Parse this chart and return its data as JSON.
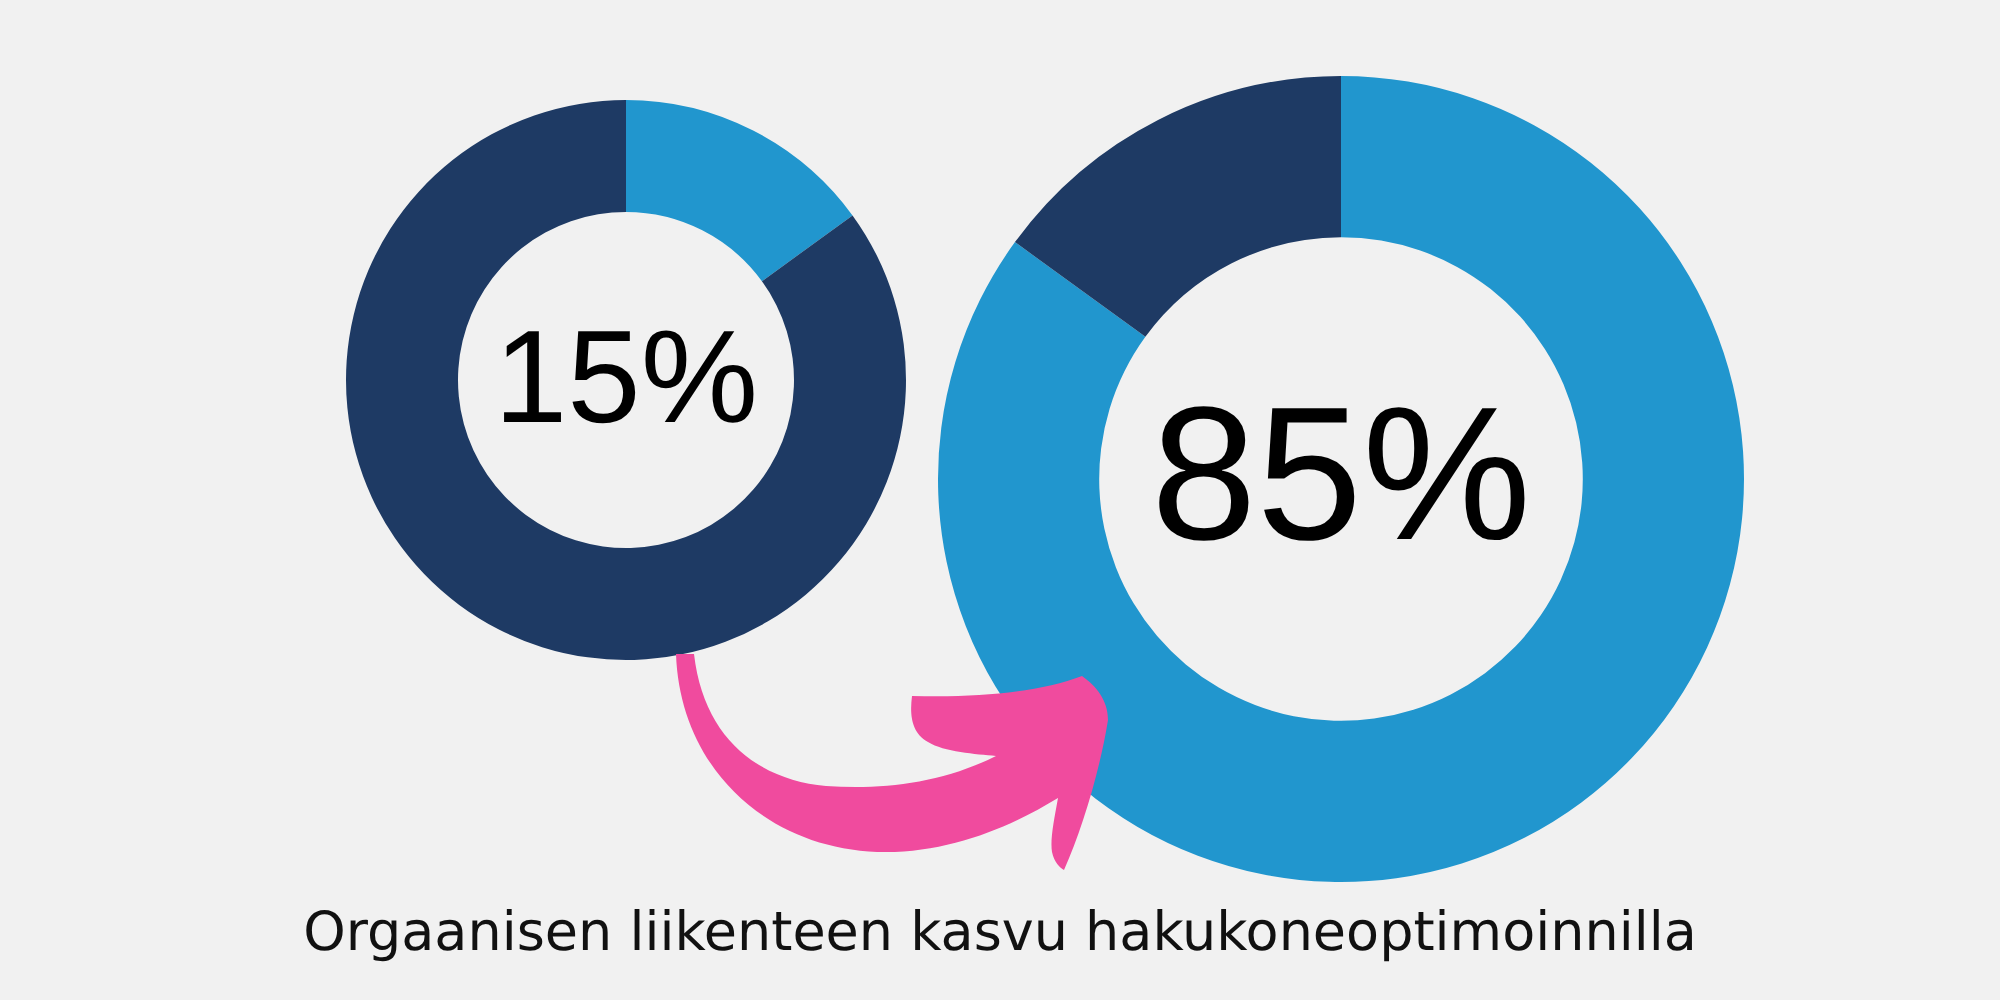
{
  "chart_data": [
    {
      "type": "donut",
      "categories": [
        null,
        null
      ],
      "values": [
        15,
        85
      ],
      "colors": [
        "#2196ce",
        "#1e3a64"
      ],
      "value_labels": [
        "15%",
        null
      ]
    },
    {
      "type": "donut",
      "categories": [
        null,
        null
      ],
      "values": [
        85,
        15
      ],
      "colors": [
        "#2196ce",
        "#1e3a64"
      ],
      "value_labels": [
        "85%",
        null
      ],
      "annotations": [
        "Orgaanisen liikenteen kasvu hakukoneoptimoinnilla"
      ]
    }
  ]
}
